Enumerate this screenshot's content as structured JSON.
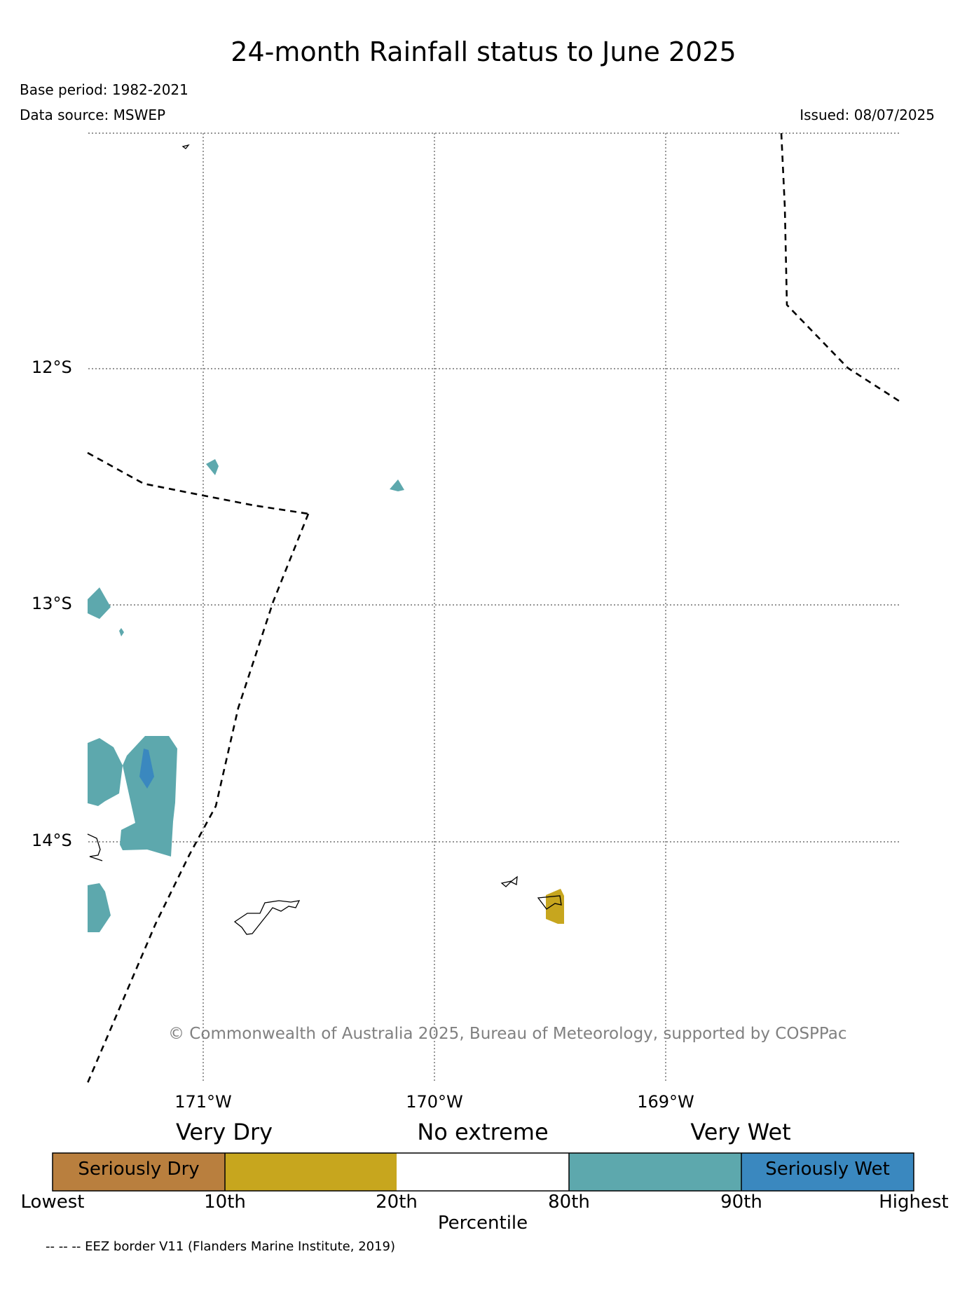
{
  "header": {
    "title": "24-month Rainfall status to June 2025",
    "base_period": "Base period: 1982-2021",
    "data_source": "Data source: MSWEP",
    "issued": "Issued: 08/07/2025"
  },
  "map": {
    "lat_labels": [
      "12°S",
      "13°S",
      "14°S"
    ],
    "lon_labels": [
      "171°W",
      "170°W",
      "169°W"
    ],
    "copyright": "© Commonwealth of Australia 2025, Bureau of Meteorology, supported by COSPPac",
    "eez_line_style": "dashed",
    "regions": [
      {
        "category": "Very Wet",
        "color": "#5da8ad"
      },
      {
        "category": "Seriously Wet",
        "color": "#3a88bf"
      },
      {
        "category": "Very Dry",
        "color": "#c7a61e"
      }
    ]
  },
  "legend": {
    "categories": [
      "Very Dry",
      "No extreme",
      "Very Wet"
    ],
    "segments": [
      {
        "label": "Seriously Dry",
        "color": "#b97f3e"
      },
      {
        "label": "",
        "color": "#c7a61e"
      },
      {
        "label": "",
        "color": "#ffffff"
      },
      {
        "label": "",
        "color": "#5da8ad"
      },
      {
        "label": "Seriously Wet",
        "color": "#3a88bf"
      }
    ],
    "ticks": [
      "Lowest",
      "10th",
      "20th",
      "80th",
      "90th",
      "Highest"
    ],
    "axis_title": "Percentile"
  },
  "footer": {
    "eez_note": "-- -- -- EEZ border V11 (Flanders Marine Institute, 2019)"
  }
}
